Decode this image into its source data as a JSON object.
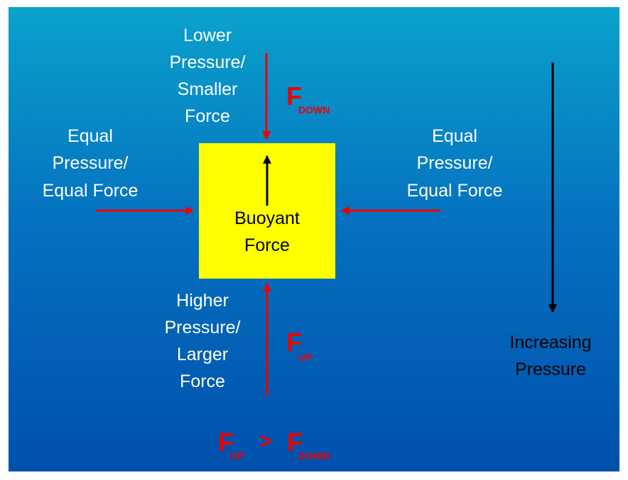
{
  "top_label": [
    "Lower",
    "Pressure/",
    "Smaller",
    "Force"
  ],
  "left_label": [
    "Equal",
    "Pressure/",
    "Equal Force"
  ],
  "right_label": [
    "Equal",
    "Pressure/",
    "Equal Force"
  ],
  "bottom_label": [
    "Higher",
    "Pressure/",
    "Larger",
    "Force"
  ],
  "box_label": [
    "Buoyant",
    "Force"
  ],
  "pressure_label": [
    "Increasing",
    "Pressure"
  ],
  "f_down": {
    "symbol": "F",
    "subscript": "DOWN"
  },
  "f_up": {
    "symbol": "F",
    "subscript": "UP"
  },
  "comparison": {
    "left": {
      "symbol": "F",
      "subscript": "UP"
    },
    "operator": ">",
    "right": {
      "symbol": "F",
      "subscript": "DOWN"
    }
  }
}
